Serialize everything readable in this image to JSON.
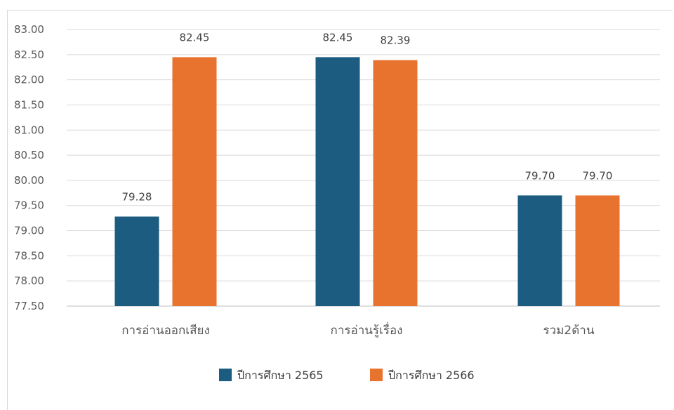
{
  "chart_data": {
    "type": "bar",
    "categories": [
      "การอ่านออกเสียง",
      "การอ่านรู้เรื่อง",
      "รวม2ด้าน"
    ],
    "series": [
      {
        "name": "ปีการศึกษา 2565",
        "values": [
          79.28,
          82.45,
          79.7
        ],
        "color": "#1b5c80"
      },
      {
        "name": "ปีการศึกษา 2566",
        "values": [
          82.45,
          82.39,
          79.7
        ],
        "color": "#e8732f"
      }
    ],
    "data_labels": [
      [
        "79.28",
        "82.45",
        "79.70"
      ],
      [
        "82.45",
        "82.39",
        "79.70"
      ]
    ],
    "y_ticks": [
      "77.50",
      "78.00",
      "78.50",
      "79.00",
      "79.50",
      "80.00",
      "80.50",
      "81.00",
      "81.50",
      "82.00",
      "82.50",
      "83.00"
    ],
    "ylim": [
      77.5,
      83.0
    ],
    "grid": true,
    "legend_position": "bottom"
  }
}
